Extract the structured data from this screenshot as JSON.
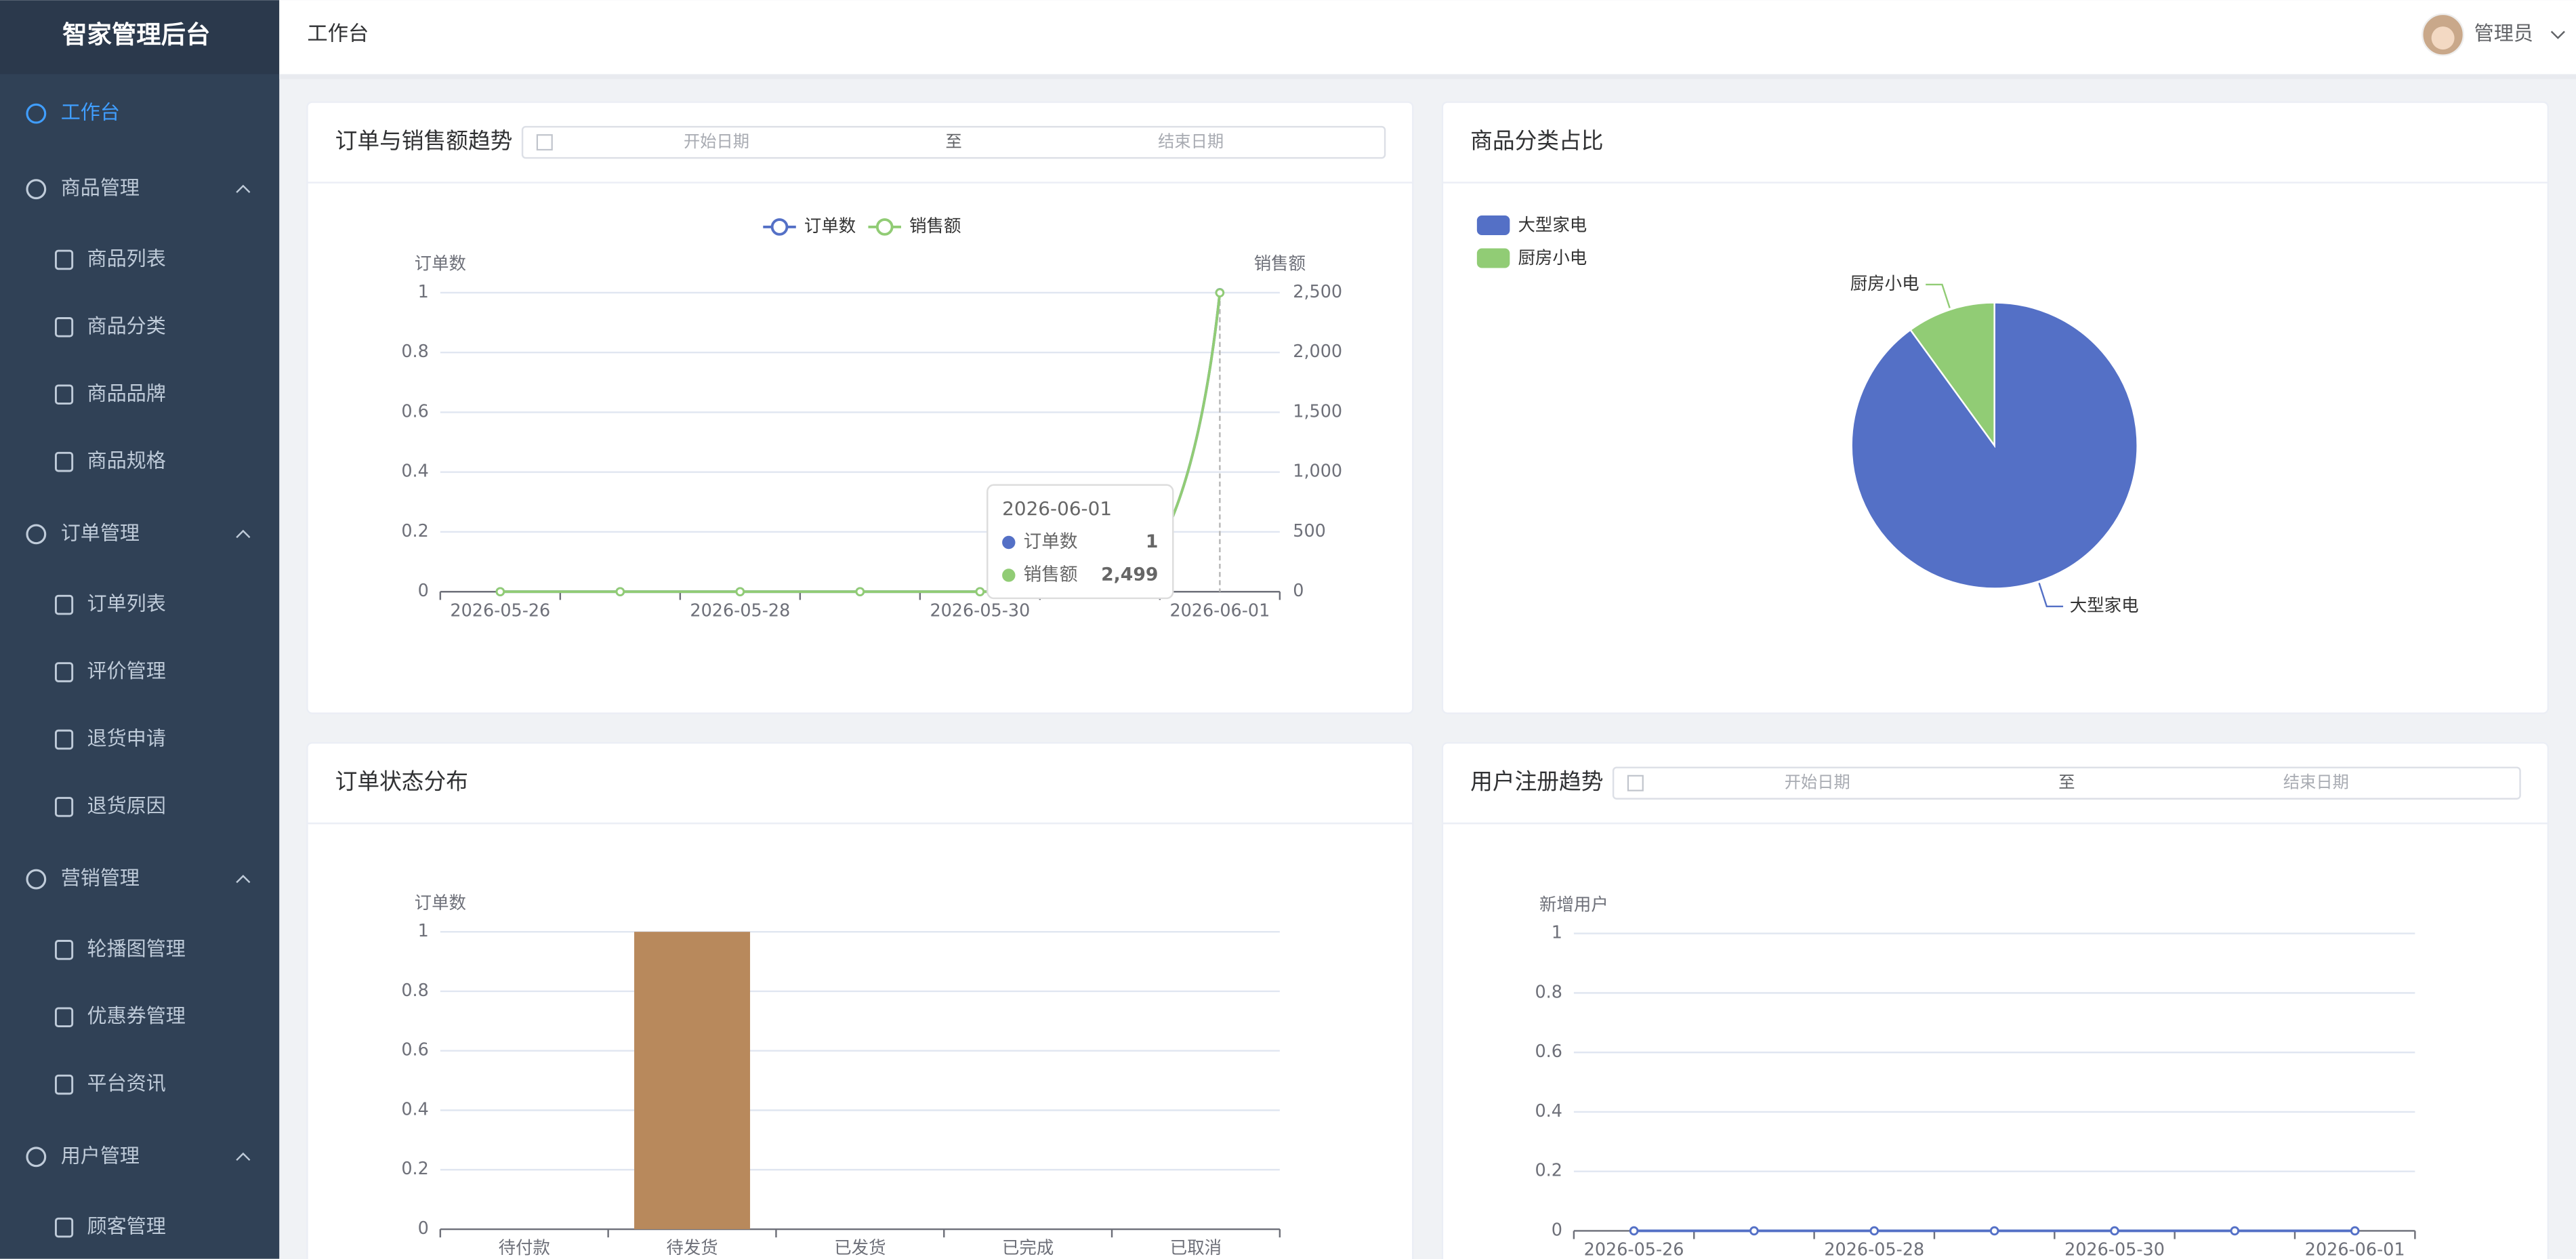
{
  "sidebar": {
    "title": "智家管理后台",
    "menu": [
      {
        "label": "工作台",
        "active": true
      },
      {
        "label": "商品管理",
        "children": [
          "商品列表",
          "商品分类",
          "商品品牌",
          "商品规格"
        ]
      },
      {
        "label": "订单管理",
        "children": [
          "订单列表",
          "评价管理",
          "退货申请",
          "退货原因"
        ]
      },
      {
        "label": "营销管理",
        "children": [
          "轮播图管理",
          "优惠券管理",
          "平台资讯"
        ]
      },
      {
        "label": "用户管理",
        "children": [
          "顾客管理"
        ]
      }
    ]
  },
  "header": {
    "breadcrumb": "工作台",
    "user": "管理员"
  },
  "chart_data": [
    {
      "type": "line",
      "title": "订单与销售额趋势",
      "date_range": {
        "start_placeholder": "开始日期",
        "separator": "至",
        "end_placeholder": "结束日期"
      },
      "categories": [
        "2026-05-26",
        null,
        "2026-05-28",
        null,
        "2026-05-30",
        null,
        "2026-06-01"
      ],
      "series": [
        {
          "name": "订单数",
          "color": "#5470c6",
          "values": [
            0,
            0,
            0,
            0,
            0,
            0,
            1
          ]
        },
        {
          "name": "销售额",
          "color": "#91cc75",
          "axis": "y2",
          "values": [
            0,
            0,
            0,
            0,
            0,
            0,
            2499
          ],
          "value_labels": [
            null,
            null,
            null,
            null,
            null,
            null,
            "2,499"
          ]
        }
      ],
      "y_label": "订单数",
      "y2_label": "销售额",
      "ylim": [
        0,
        1
      ],
      "yticks": [
        0,
        0.2,
        0.4,
        0.6,
        0.8,
        1
      ],
      "y2lim": [
        0,
        2500
      ],
      "y2ticks": [
        0,
        500,
        {
          "value": 1000,
          "label": "1,000"
        },
        {
          "value": 1500,
          "label": "1,500"
        },
        {
          "value": 2000,
          "label": "2,000"
        },
        {
          "value": 2500,
          "label": "2,500"
        }
      ],
      "grid": true,
      "legend": "top",
      "tooltip_index": 6
    },
    {
      "type": "pie",
      "title": "商品分类占比",
      "categories": [
        "大型家电",
        "厨房小电"
      ],
      "values": [
        90,
        10
      ],
      "colors": [
        "#5470c6",
        "#91cc75"
      ],
      "legend": "top-left"
    },
    {
      "type": "bar",
      "title": "订单状态分布",
      "categories": [
        "待付款",
        "待发货",
        "已发货",
        "已完成",
        "已取消"
      ],
      "values": [
        0,
        1,
        0,
        0,
        0
      ],
      "color": "#b8895c",
      "y_label": "订单数",
      "ylim": [
        0,
        1
      ],
      "yticks": [
        0,
        0.2,
        0.4,
        0.6,
        0.8,
        1
      ],
      "grid": true
    },
    {
      "type": "line",
      "title": "用户注册趋势",
      "date_range": {
        "start_placeholder": "开始日期",
        "separator": "至",
        "end_placeholder": "结束日期"
      },
      "categories": [
        "2026-05-26",
        null,
        "2026-05-28",
        null,
        "2026-05-30",
        null,
        "2026-06-01"
      ],
      "series": [
        {
          "color": "#5470c6",
          "values": [
            0,
            0,
            0,
            0,
            0,
            0,
            0
          ]
        }
      ],
      "y_label": "新增用户",
      "ylim": [
        0,
        1
      ],
      "yticks": [
        0,
        0.2,
        0.4,
        0.6,
        0.8,
        1
      ],
      "grid": true
    }
  ]
}
